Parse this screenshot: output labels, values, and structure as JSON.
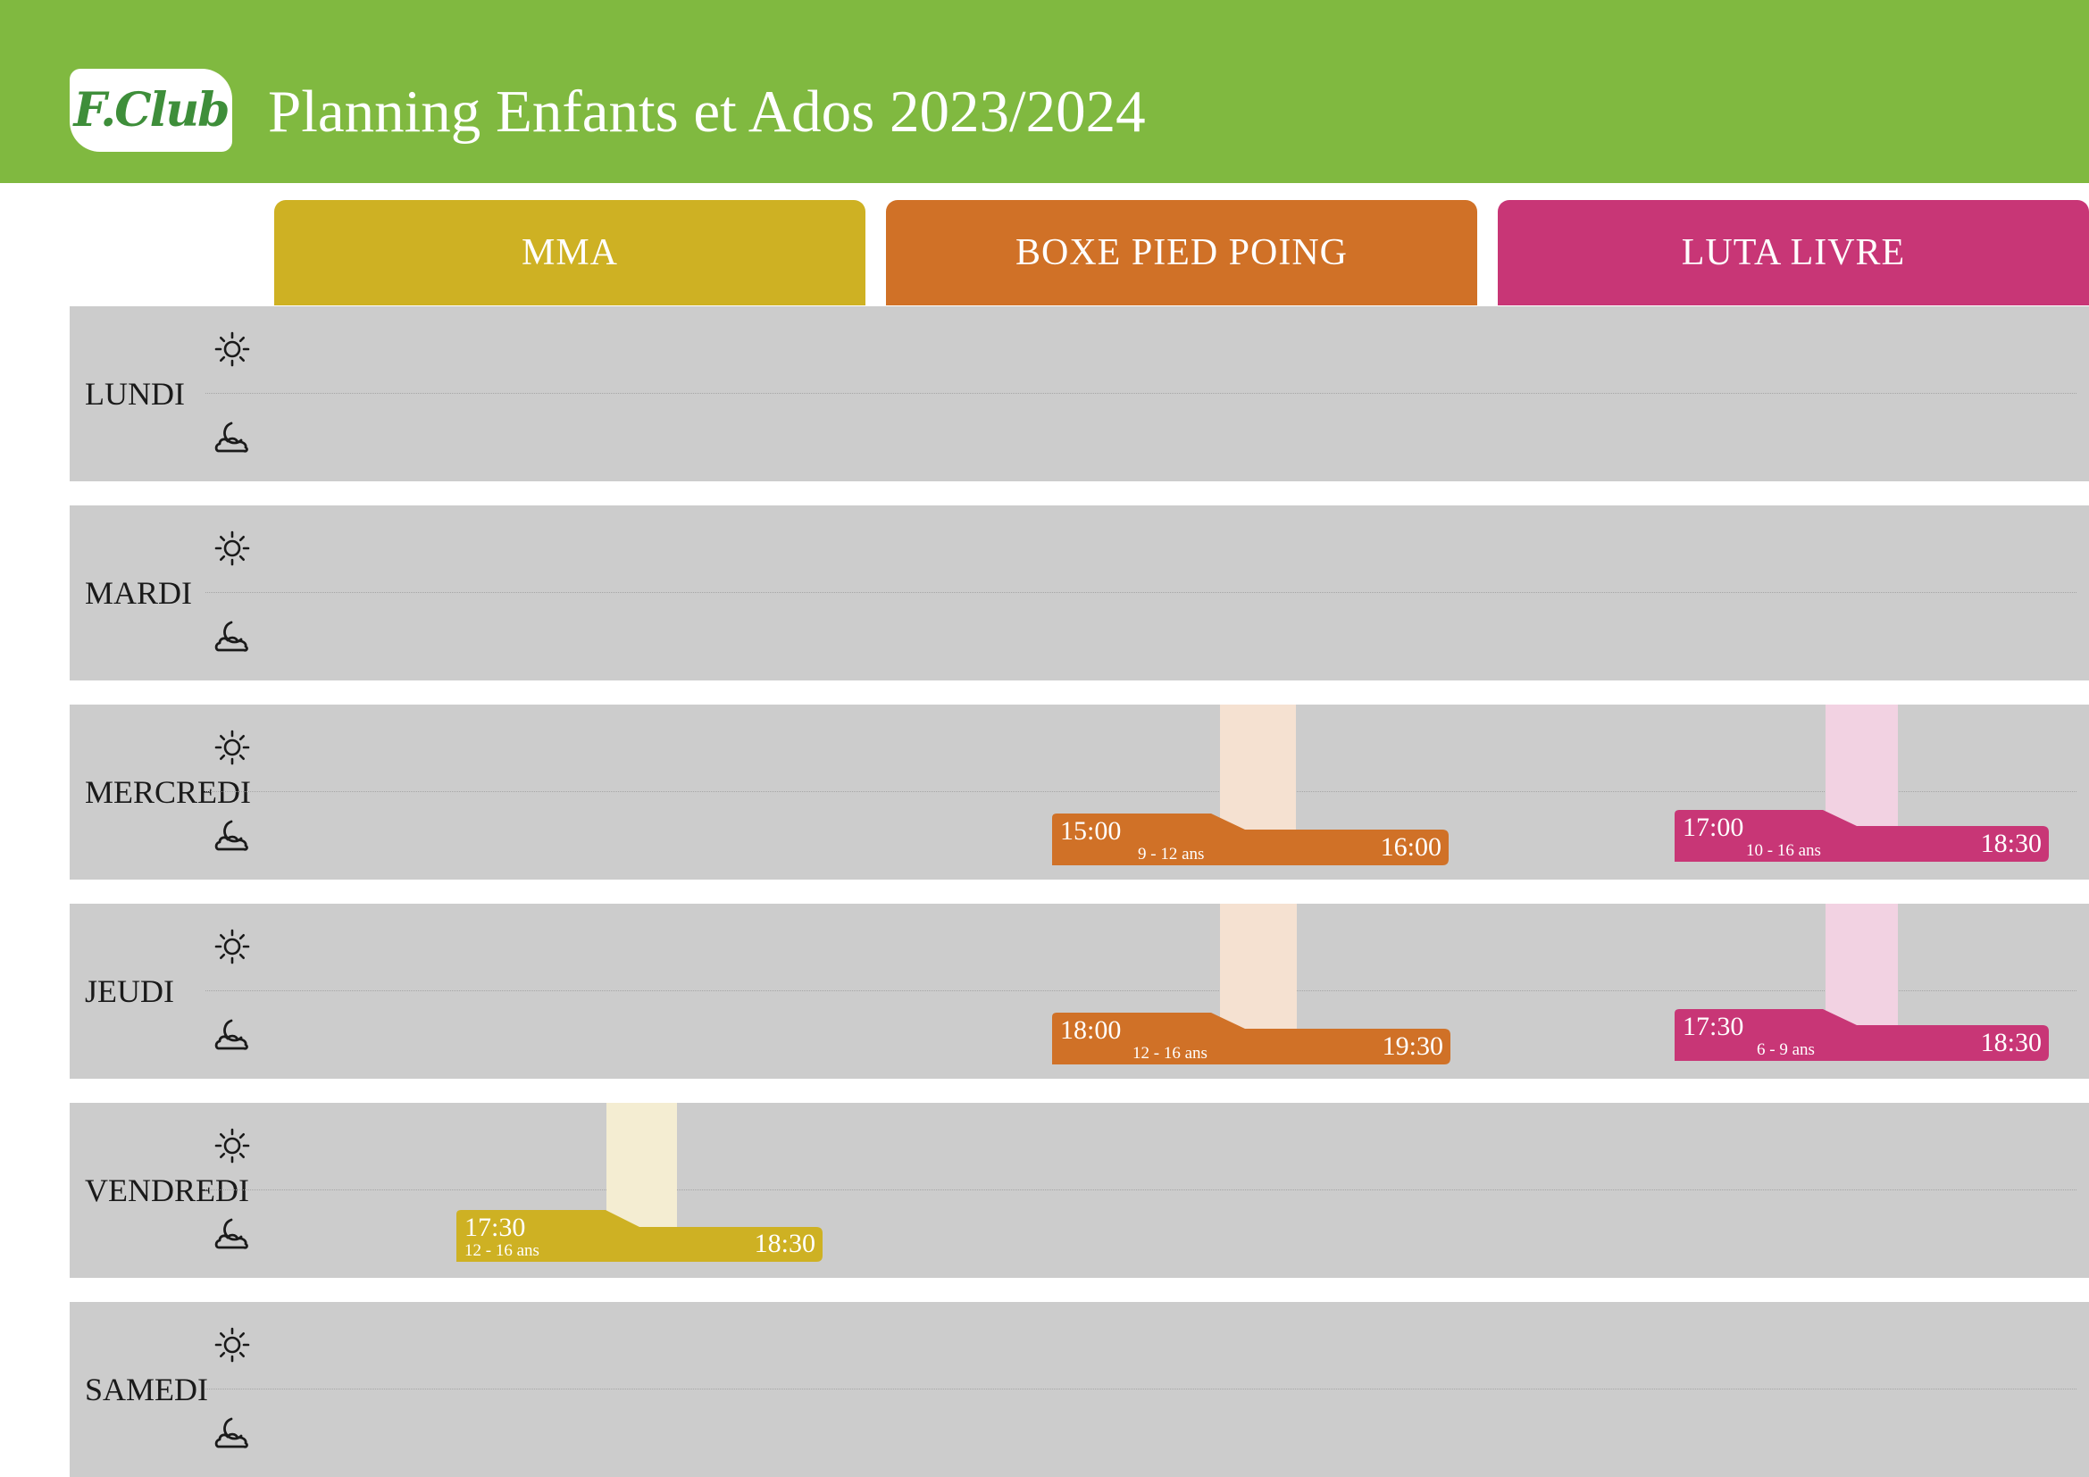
{
  "header": {
    "logo_text": "F.Club",
    "title": "Planning Enfants et Ados 2023/2024"
  },
  "disciplines": [
    {
      "label": "MMA",
      "color": "#ceb123",
      "light": "#f4edd2"
    },
    {
      "label": "BOXE PIED POING",
      "color": "#d07127",
      "light": "#f5e1d1"
    },
    {
      "label": "LUTA LIVRE",
      "color": "#c83676",
      "light": "#f2d2e2"
    }
  ],
  "icons": {
    "day": "sun-icon",
    "evening": "moon-cloud-icon"
  },
  "days": [
    {
      "label": "LUNDI",
      "slots": []
    },
    {
      "label": "MARDI",
      "slots": []
    },
    {
      "label": "MERCREDI",
      "slots": [
        {
          "discipline": 1,
          "start": "15:00",
          "end": "16:00",
          "age": "9 - 12 ans"
        },
        {
          "discipline": 2,
          "start": "17:00",
          "end": "18:30",
          "age": "10 - 16 ans"
        }
      ]
    },
    {
      "label": "JEUDI",
      "slots": [
        {
          "discipline": 1,
          "start": "18:00",
          "end": "19:30",
          "age": "12 - 16 ans"
        },
        {
          "discipline": 2,
          "start": "17:30",
          "end": "18:30",
          "age": "6 - 9 ans"
        }
      ]
    },
    {
      "label": "VENDREDI",
      "slots": [
        {
          "discipline": 0,
          "start": "17:30",
          "end": "18:30",
          "age": "12 - 16 ans"
        }
      ]
    },
    {
      "label": "SAMEDI",
      "slots": []
    }
  ]
}
